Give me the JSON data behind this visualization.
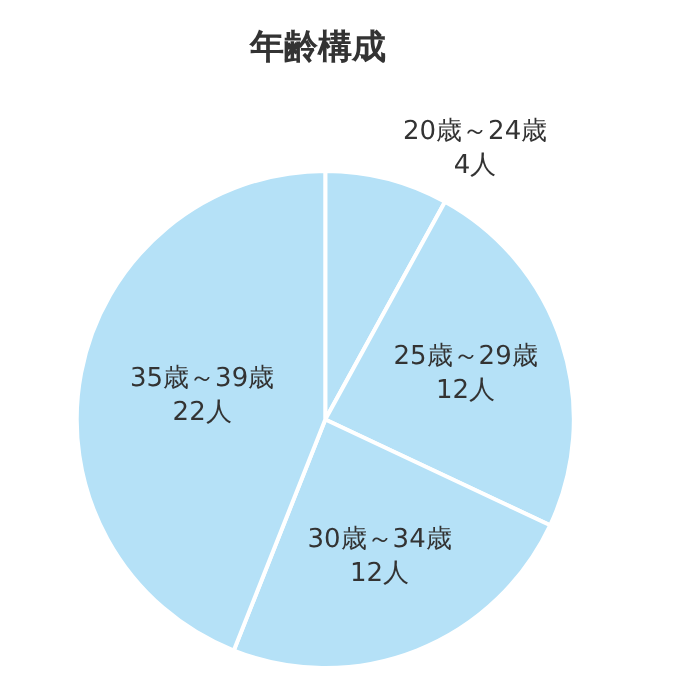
{
  "chart_data": {
    "type": "pie",
    "title": "年齢構成",
    "categories": [
      "20歳～24歳",
      "25歳～29歳",
      "30歳～34歳",
      "35歳～39歳"
    ],
    "values": [
      4,
      12,
      12,
      22
    ],
    "value_labels": [
      "4人",
      "12人",
      "12人",
      "22人"
    ],
    "colors": [
      "#b5e1f7",
      "#b5e1f7",
      "#b5e1f7",
      "#b5e1f7"
    ]
  }
}
